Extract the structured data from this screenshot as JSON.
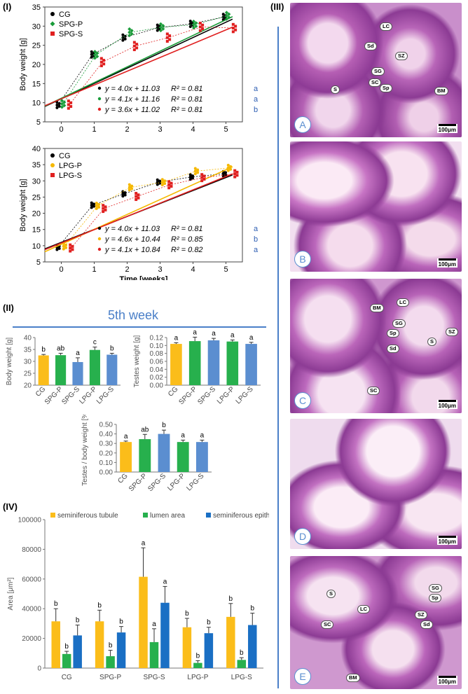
{
  "panels": {
    "I": "(I)",
    "II": "(II)",
    "III": "(III)",
    "IV": "(IV)"
  },
  "colors": {
    "CG": "#000000",
    "SPG_P": "#1a9c3a",
    "SPG_S": "#e02020",
    "LPG_P": "#f5b800",
    "LPG_S": "#e02020",
    "accent": "#4a7fc8",
    "bar_yellow": "#fbbd1a",
    "bar_green": "#27b04d",
    "bar_blue": "#5b8ed0"
  },
  "chart_data": [
    {
      "id": "I-top",
      "type": "scatter",
      "xlabel": "Time [weeks]",
      "ylabel": "Body weight [g]",
      "xlim": [
        -0.5,
        5.5
      ],
      "ylim": [
        5,
        35
      ],
      "xticks": [
        0,
        1,
        2,
        3,
        4,
        5
      ],
      "yticks": [
        5,
        10,
        15,
        20,
        25,
        30,
        35
      ],
      "legend_position": "top-left",
      "series": [
        {
          "name": "CG",
          "color": "#000000",
          "means": [
            [
              -0.1,
              9.4
            ],
            [
              0.95,
              22.6
            ],
            [
              1.9,
              27.0
            ],
            [
              2.95,
              29.6
            ],
            [
              3.95,
              30.6
            ],
            [
              4.95,
              32.4
            ]
          ],
          "fit": {
            "slope": 4.0,
            "intercept": 11.03
          }
        },
        {
          "name": "SPG-P",
          "color": "#1a9c3a",
          "means": [
            [
              0.05,
              9.7
            ],
            [
              1.05,
              22.5
            ],
            [
              2.1,
              28.4
            ],
            [
              3.05,
              29.7
            ],
            [
              4.05,
              30.4
            ],
            [
              5.05,
              32.7
            ]
          ],
          "fit": {
            "slope": 4.1,
            "intercept": 11.16
          }
        },
        {
          "name": "SPG-S",
          "color": "#e02020",
          "means": [
            [
              0.25,
              9.5
            ],
            [
              1.25,
              20.6
            ],
            [
              2.25,
              24.8
            ],
            [
              3.25,
              27.0
            ],
            [
              4.25,
              29.8
            ],
            [
              5.25,
              29.5
            ]
          ],
          "fit": {
            "slope": 3.6,
            "intercept": 11.02
          }
        }
      ],
      "equations": [
        {
          "text": "y = 4.0x + 11.03",
          "r2": "R² = 0.81",
          "letter": "a",
          "color": "#000000"
        },
        {
          "text": "y = 4.1x + 11.16",
          "r2": "R² = 0.81",
          "letter": "a",
          "color": "#1a9c3a"
        },
        {
          "text": "y = 3.6x + 11.02",
          "r2": "R² = 0.81",
          "letter": "b",
          "color": "#e02020"
        }
      ]
    },
    {
      "id": "I-bottom",
      "type": "scatter",
      "xlabel": "Time [weeks]",
      "ylabel": "Body weight [g]",
      "xlim": [
        -0.5,
        5.5
      ],
      "ylim": [
        5,
        40
      ],
      "xticks": [
        0,
        1,
        2,
        3,
        4,
        5
      ],
      "yticks": [
        5,
        10,
        15,
        20,
        25,
        30,
        35,
        40
      ],
      "legend_position": "top-left",
      "series": [
        {
          "name": "CG",
          "color": "#000000",
          "means": [
            [
              -0.1,
              9.5
            ],
            [
              0.95,
              22.5
            ],
            [
              1.9,
              26.0
            ],
            [
              2.95,
              29.6
            ],
            [
              3.95,
              31.2
            ],
            [
              4.95,
              32.2
            ]
          ],
          "fit": {
            "slope": 4.0,
            "intercept": 11.03
          }
        },
        {
          "name": "LPG-P",
          "color": "#f5b800",
          "means": [
            [
              0.1,
              9.8
            ],
            [
              1.1,
              22.3
            ],
            [
              2.1,
              28.0
            ],
            [
              3.1,
              29.6
            ],
            [
              4.1,
              33.0
            ],
            [
              5.1,
              34.0
            ]
          ],
          "fit": {
            "slope": 4.6,
            "intercept": 10.44
          }
        },
        {
          "name": "LPG-S",
          "color": "#e02020",
          "means": [
            [
              0.3,
              9.3
            ],
            [
              1.3,
              21.5
            ],
            [
              2.3,
              25.2
            ],
            [
              3.3,
              28.8
            ],
            [
              4.3,
              31.0
            ],
            [
              5.3,
              32.2
            ]
          ],
          "fit": {
            "slope": 4.1,
            "intercept": 10.84
          }
        }
      ],
      "equations": [
        {
          "text": "y = 4.0x + 11.03",
          "r2": "R² = 0.81",
          "letter": "a",
          "color": "#000000"
        },
        {
          "text": "y = 4.6x + 10.44",
          "r2": "R² = 0.85",
          "letter": "b",
          "color": "#f5b800"
        },
        {
          "text": "y = 4.1x + 10.84",
          "r2": "R² = 0.82",
          "letter": "a",
          "color": "#e02020"
        }
      ]
    },
    {
      "id": "II-body",
      "type": "bar",
      "ylabel": "Body weight [g]",
      "ylim": [
        20,
        40
      ],
      "yticks": [
        20,
        25,
        30,
        35,
        40
      ],
      "categories": [
        "CG",
        "SPG-P",
        "SPG-S",
        "LPG-P",
        "LPG-S"
      ],
      "values": [
        32.5,
        32.6,
        29.7,
        34.8,
        32.8
      ],
      "errors": [
        0.4,
        0.8,
        1.8,
        1.2,
        0.6
      ],
      "letters": [
        "b",
        "ab",
        "a",
        "c",
        "b"
      ],
      "colors": [
        "#fbbd1a",
        "#27b04d",
        "#5b8ed0",
        "#27b04d",
        "#5b8ed0"
      ]
    },
    {
      "id": "II-testes",
      "type": "bar",
      "ylabel": "Testes weight [g]",
      "ylim": [
        0,
        0.12
      ],
      "yticks": [
        "0.00",
        "0.02",
        "0.04",
        "0.06",
        "0.08",
        "0.10",
        "0.12"
      ],
      "categories": [
        "CG",
        "SPG-P",
        "SPG-S",
        "LPG-P",
        "LPG-S"
      ],
      "values": [
        0.104,
        0.111,
        0.113,
        0.11,
        0.104
      ],
      "errors": [
        0.003,
        0.01,
        0.005,
        0.004,
        0.004
      ],
      "letters": [
        "a",
        "a",
        "a",
        "a",
        "a"
      ],
      "colors": [
        "#fbbd1a",
        "#27b04d",
        "#5b8ed0",
        "#27b04d",
        "#5b8ed0"
      ]
    },
    {
      "id": "II-ratio",
      "type": "bar",
      "ylabel": "Testes / body weight [%]",
      "ylim": [
        0,
        0.5
      ],
      "yticks": [
        "0.00",
        "0.10",
        "0.20",
        "0.30",
        "0.40",
        "0.50"
      ],
      "categories": [
        "CG",
        "SPG-P",
        "SPG-S",
        "LPG-P",
        "LPG-S"
      ],
      "values": [
        0.315,
        0.345,
        0.4,
        0.315,
        0.315
      ],
      "errors": [
        0.01,
        0.05,
        0.04,
        0.02,
        0.02
      ],
      "letters": [
        "a",
        "ab",
        "b",
        "a",
        "a"
      ],
      "colors": [
        "#fbbd1a",
        "#27b04d",
        "#5b8ed0",
        "#27b04d",
        "#5b8ed0"
      ]
    },
    {
      "id": "IV",
      "type": "bar",
      "ylabel": "Area [μm²]",
      "ylim": [
        0,
        100000
      ],
      "yticks": [
        "0",
        "20000",
        "40000",
        "60000",
        "80000",
        "100000"
      ],
      "categories": [
        "CG",
        "SPG-P",
        "SPG-S",
        "LPG-P",
        "LPG-S"
      ],
      "series": [
        {
          "name": "seminiferous tubule",
          "color": "#fbbd1a",
          "values": [
            31500,
            31500,
            61500,
            27500,
            34500
          ],
          "errors": [
            8500,
            7500,
            19500,
            6000,
            9000
          ],
          "letters": [
            "b",
            "b",
            "a",
            "b",
            "b"
          ]
        },
        {
          "name": "lumen area",
          "color": "#27b04d",
          "values": [
            9500,
            8000,
            17500,
            3500,
            5500
          ],
          "errors": [
            1800,
            4000,
            9000,
            1500,
            1500
          ],
          "letters": [
            "b",
            "b",
            "a",
            "b",
            "b"
          ]
        },
        {
          "name": "seminiferous epithelium",
          "color": "#1a6fc4",
          "values": [
            22000,
            24000,
            44000,
            23500,
            29000
          ],
          "errors": [
            7000,
            4000,
            11000,
            4000,
            8000
          ],
          "letters": [
            "b",
            "b",
            "a",
            "b",
            "b"
          ]
        }
      ]
    }
  ],
  "week_title": "5th week",
  "histology": {
    "A": {
      "label": "A",
      "scale": "100μm",
      "tags": [
        "LC",
        "Sd",
        "SZ",
        "SG",
        "SC",
        "Sp",
        "S",
        "BM"
      ]
    },
    "B": {
      "label": "B",
      "scale": "100μm"
    },
    "C": {
      "label": "C",
      "scale": "100μm",
      "tags": [
        "BM",
        "LC",
        "SG",
        "Sp",
        "SZ",
        "S",
        "Sd",
        "SC"
      ]
    },
    "D": {
      "label": "D",
      "scale": "100μm"
    },
    "E": {
      "label": "E",
      "scale": "100μm",
      "tags": [
        "S",
        "LC",
        "SG",
        "Sp",
        "SZ",
        "SC",
        "Sd",
        "BM"
      ]
    }
  }
}
